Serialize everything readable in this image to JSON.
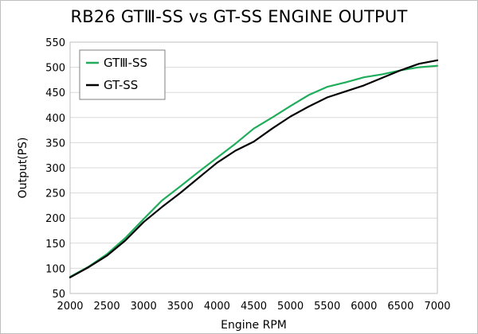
{
  "chart_data": {
    "type": "line",
    "title": "RB26 GTⅢ-SS vs GT-SS ENGINE OUTPUT",
    "xlabel": "Engine RPM",
    "ylabel": "Output(PS)",
    "xlim": [
      2000,
      7000
    ],
    "ylim": [
      50,
      550
    ],
    "xticks": [
      "2000",
      "2500",
      "3000",
      "3500",
      "4000",
      "4500",
      "5000",
      "5500",
      "6000",
      "6500",
      "7000"
    ],
    "yticks": [
      "50",
      "100",
      "150",
      "200",
      "250",
      "300",
      "350",
      "400",
      "450",
      "500",
      "550"
    ],
    "grid": true,
    "legend_position": "top-left",
    "x": [
      2000,
      2250,
      2500,
      2750,
      3000,
      3250,
      3500,
      3750,
      4000,
      4250,
      4500,
      4750,
      5000,
      5250,
      5500,
      5750,
      6000,
      6250,
      6500,
      6750,
      7000
    ],
    "series": [
      {
        "name": "GTⅢ-SS",
        "color": "#1fad5c",
        "values": [
          83,
          103,
          128,
          160,
          198,
          235,
          263,
          292,
          320,
          348,
          378,
          400,
          423,
          445,
          461,
          470,
          480,
          486,
          494,
          500,
          503
        ]
      },
      {
        "name": "GT-SS",
        "color": "#000000",
        "values": [
          82,
          102,
          125,
          155,
          192,
          222,
          250,
          280,
          310,
          334,
          352,
          378,
          402,
          422,
          440,
          452,
          464,
          479,
          494,
          507,
          514
        ]
      }
    ]
  }
}
